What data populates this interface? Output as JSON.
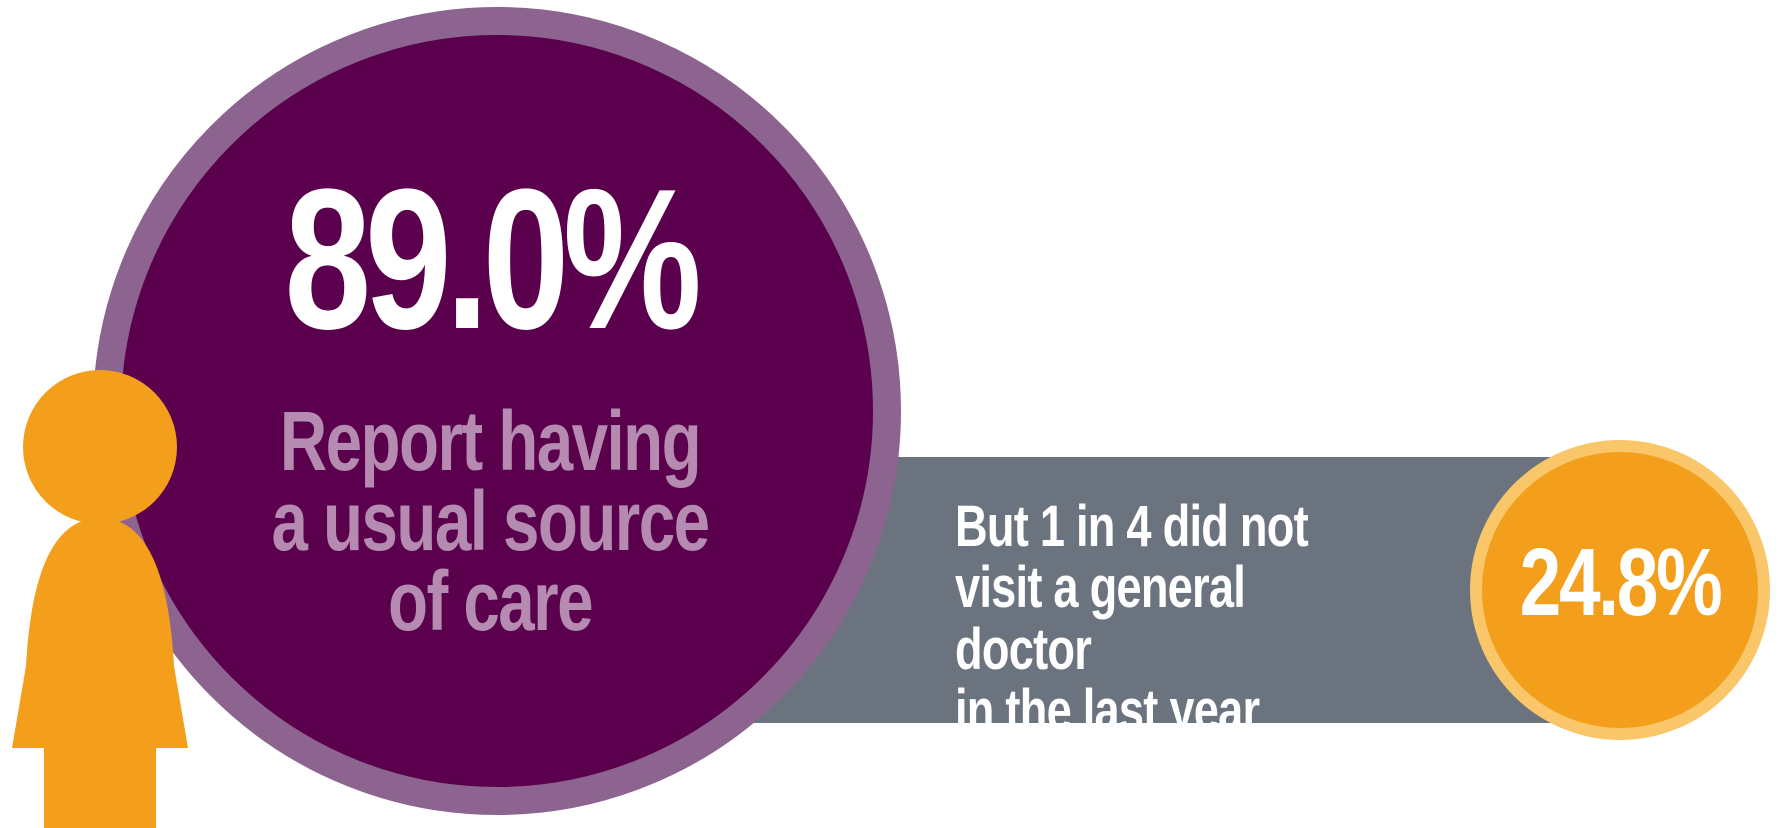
{
  "colors": {
    "big_circle_fill": "#5a004c",
    "big_circle_ring": "#8d6390",
    "big_caption_text": "#b58bb1",
    "bar_fill": "#6b747e",
    "small_circle_fill": "#f49f1c",
    "small_circle_ring": "#f9c66a",
    "person_fill": "#f49f1c"
  },
  "icons": {
    "person": "person-icon"
  },
  "main_stat": {
    "value": "89.0%",
    "caption_line1": "Report having",
    "caption_line2": "a usual source",
    "caption_line3": "of care"
  },
  "secondary_stat": {
    "caption_line1": "But 1 in 4 did not",
    "caption_line2": "visit a general doctor",
    "caption_line3": "in the last year",
    "value": "24.8%"
  }
}
